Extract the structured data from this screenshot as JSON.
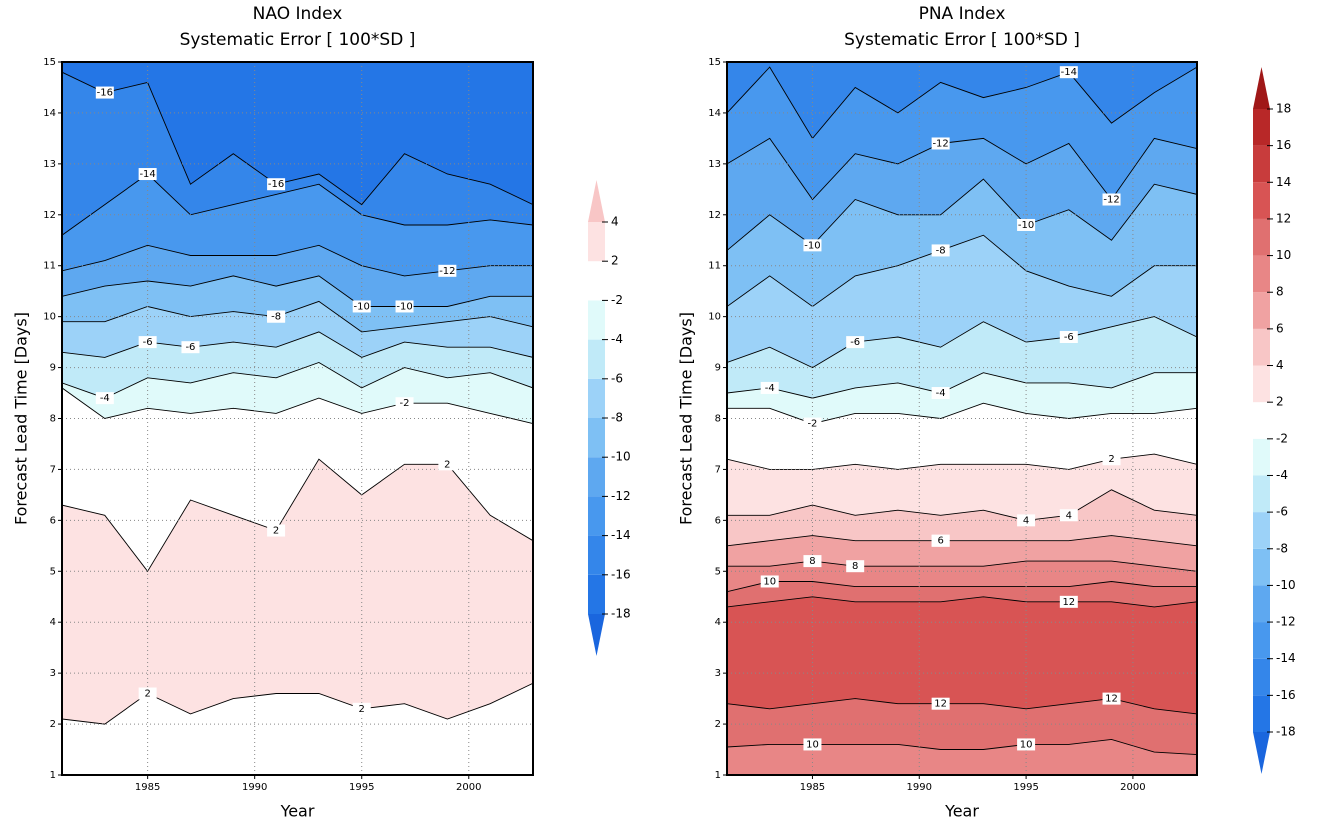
{
  "chart_data": [
    {
      "type": "contour",
      "title": "NAO Index",
      "subtitle": "Systematic Error [ 100*SD ]",
      "xlabel": "Year",
      "ylabel": "Forecast Lead Time  [Days]",
      "xlim": [
        1981,
        2003
      ],
      "xticks": [
        1985,
        1990,
        1995,
        2000
      ],
      "ylim": [
        1,
        15
      ],
      "yticks": [
        1,
        2,
        3,
        4,
        5,
        6,
        7,
        8,
        9,
        10,
        11,
        12,
        13,
        14,
        15
      ],
      "grid": true,
      "base_color": "#ffffff",
      "x": [
        1981,
        1983,
        1985,
        1987,
        1989,
        1991,
        1993,
        1995,
        1997,
        1999,
        2001,
        2003
      ],
      "series": [
        {
          "level": 2,
          "color": "#fde2e2",
          "values": [
            2.1,
            2.0,
            2.6,
            2.2,
            2.5,
            2.6,
            2.6,
            2.3,
            2.4,
            2.1,
            2.4,
            2.8
          ]
        },
        {
          "level": 2,
          "color": "#ffffff",
          "values": [
            6.3,
            6.1,
            5.0,
            6.4,
            6.1,
            5.8,
            7.2,
            6.5,
            7.1,
            7.1,
            6.1,
            5.6
          ]
        },
        {
          "level": -2,
          "color": "#e0fafa",
          "values": [
            8.6,
            8.0,
            8.2,
            8.1,
            8.2,
            8.1,
            8.4,
            8.1,
            8.3,
            8.3,
            8.1,
            7.9
          ]
        },
        {
          "level": -4,
          "color": "#c0eaf8",
          "values": [
            8.7,
            8.4,
            8.8,
            8.7,
            8.9,
            8.8,
            9.1,
            8.6,
            9.0,
            8.8,
            8.9,
            8.6
          ]
        },
        {
          "level": -6,
          "color": "#9cd2f8",
          "values": [
            9.3,
            9.2,
            9.5,
            9.4,
            9.5,
            9.4,
            9.7,
            9.2,
            9.5,
            9.4,
            9.4,
            9.2
          ]
        },
        {
          "level": -8,
          "color": "#7ec0f4",
          "values": [
            9.9,
            9.9,
            10.2,
            10.0,
            10.1,
            10.0,
            10.3,
            9.7,
            9.8,
            9.9,
            10.0,
            9.8
          ]
        },
        {
          "level": -10,
          "color": "#5ea8f0",
          "values": [
            10.4,
            10.6,
            10.7,
            10.6,
            10.8,
            10.6,
            10.8,
            10.2,
            10.2,
            10.2,
            10.4,
            10.4
          ]
        },
        {
          "level": -12,
          "color": "#4898ee",
          "values": [
            10.9,
            11.1,
            11.4,
            11.2,
            11.2,
            11.2,
            11.4,
            11.0,
            10.8,
            10.9,
            11.0,
            11.0
          ]
        },
        {
          "level": -14,
          "color": "#3486ea",
          "values": [
            11.6,
            12.2,
            12.8,
            12.0,
            12.2,
            12.4,
            12.6,
            12.0,
            11.8,
            11.8,
            11.9,
            11.8
          ]
        },
        {
          "level": -16,
          "color": "#2476e6",
          "values": [
            14.8,
            14.4,
            14.6,
            12.6,
            13.2,
            12.6,
            12.8,
            12.2,
            13.2,
            12.8,
            12.6,
            12.2
          ]
        }
      ],
      "colorbar": {
        "levels": [
          -18,
          -16,
          -14,
          -12,
          -10,
          -8,
          -6,
          -4,
          -2,
          2,
          4
        ],
        "colors": [
          "#1a66de",
          "#2476e6",
          "#3486ea",
          "#4898ee",
          "#5ea8f0",
          "#7ec0f4",
          "#9cd2f8",
          "#c0eaf8",
          "#e0fafa",
          "#ffffff",
          "#fde2e2",
          "#f8c6c6"
        ]
      }
    },
    {
      "type": "contour",
      "title": "PNA Index",
      "subtitle": "Systematic Error [ 100*SD ]",
      "xlabel": "Year",
      "ylabel": "Forecast Lead Time  [Days]",
      "xlim": [
        1981,
        2003
      ],
      "xticks": [
        1985,
        1990,
        1995,
        2000
      ],
      "ylim": [
        1,
        15
      ],
      "yticks": [
        1,
        2,
        3,
        4,
        5,
        6,
        7,
        8,
        9,
        10,
        11,
        12,
        13,
        14,
        15
      ],
      "grid": true,
      "base_color": "#e88686",
      "x": [
        1981,
        1983,
        1985,
        1987,
        1989,
        1991,
        1993,
        1995,
        1997,
        1999,
        2001,
        2003
      ],
      "series": [
        {
          "level": 10,
          "color": "#e07070",
          "values": [
            1.55,
            1.6,
            1.6,
            1.6,
            1.6,
            1.5,
            1.5,
            1.6,
            1.6,
            1.7,
            1.45,
            1.4
          ]
        },
        {
          "level": 12,
          "color": "#d85454",
          "values": [
            2.4,
            2.3,
            2.4,
            2.5,
            2.4,
            2.4,
            2.4,
            2.3,
            2.4,
            2.5,
            2.3,
            2.2
          ]
        },
        {
          "level": 12,
          "color": "#e07070",
          "values": [
            4.3,
            4.4,
            4.5,
            4.4,
            4.4,
            4.4,
            4.5,
            4.4,
            4.4,
            4.4,
            4.3,
            4.4
          ]
        },
        {
          "level": 10,
          "color": "#e88686",
          "values": [
            4.6,
            4.8,
            4.8,
            4.7,
            4.7,
            4.7,
            4.7,
            4.7,
            4.7,
            4.8,
            4.7,
            4.7
          ]
        },
        {
          "level": 8,
          "color": "#f0a2a2",
          "values": [
            5.1,
            5.1,
            5.2,
            5.1,
            5.1,
            5.1,
            5.1,
            5.2,
            5.2,
            5.2,
            5.1,
            5.0
          ]
        },
        {
          "level": 6,
          "color": "#f8c6c6",
          "values": [
            5.5,
            5.6,
            5.7,
            5.6,
            5.6,
            5.6,
            5.6,
            5.6,
            5.6,
            5.7,
            5.6,
            5.5
          ]
        },
        {
          "level": 4,
          "color": "#fde2e2",
          "values": [
            6.1,
            6.1,
            6.3,
            6.1,
            6.2,
            6.1,
            6.2,
            6.0,
            6.1,
            6.6,
            6.2,
            6.1
          ]
        },
        {
          "level": 2,
          "color": "#ffffff",
          "values": [
            7.2,
            7.0,
            7.0,
            7.1,
            7.0,
            7.1,
            7.1,
            7.1,
            7.0,
            7.2,
            7.3,
            7.1
          ]
        },
        {
          "level": -2,
          "color": "#e0fafa",
          "values": [
            8.2,
            8.2,
            7.9,
            8.1,
            8.1,
            8.0,
            8.3,
            8.1,
            8.0,
            8.1,
            8.1,
            8.2
          ]
        },
        {
          "level": -4,
          "color": "#c0eaf8",
          "values": [
            8.5,
            8.6,
            8.4,
            8.6,
            8.7,
            8.5,
            8.9,
            8.7,
            8.7,
            8.6,
            8.9,
            8.9
          ]
        },
        {
          "level": -6,
          "color": "#9cd2f8",
          "values": [
            9.1,
            9.4,
            9.0,
            9.5,
            9.6,
            9.4,
            9.9,
            9.5,
            9.6,
            9.8,
            10.0,
            9.6
          ]
        },
        {
          "level": -8,
          "color": "#7ec0f4",
          "values": [
            10.2,
            10.8,
            10.2,
            10.8,
            11.0,
            11.3,
            11.6,
            10.9,
            10.6,
            10.4,
            11.0,
            11.0
          ]
        },
        {
          "level": -10,
          "color": "#5ea8f0",
          "values": [
            11.3,
            12.0,
            11.4,
            12.3,
            12.0,
            12.0,
            12.7,
            11.8,
            12.1,
            11.5,
            12.6,
            12.4
          ]
        },
        {
          "level": -12,
          "color": "#4898ee",
          "values": [
            13.0,
            13.5,
            12.3,
            13.2,
            13.0,
            13.4,
            13.5,
            13.0,
            13.4,
            12.3,
            13.5,
            13.3
          ]
        },
        {
          "level": -14,
          "color": "#3486ea",
          "values": [
            14.0,
            14.9,
            13.5,
            14.5,
            14.0,
            14.6,
            14.3,
            14.5,
            14.8,
            13.8,
            14.4,
            14.9
          ]
        }
      ],
      "colorbar": {
        "levels": [
          -18,
          -16,
          -14,
          -12,
          -10,
          -8,
          -6,
          -4,
          -2,
          2,
          4,
          6,
          8,
          10,
          12,
          14,
          16,
          18
        ],
        "colors": [
          "#1a66de",
          "#2476e6",
          "#3486ea",
          "#4898ee",
          "#5ea8f0",
          "#7ec0f4",
          "#9cd2f8",
          "#c0eaf8",
          "#e0fafa",
          "#ffffff",
          "#fde2e2",
          "#f8c6c6",
          "#f0a2a2",
          "#e88686",
          "#e07070",
          "#d85454",
          "#c83c3c",
          "#b82828",
          "#a01818"
        ]
      }
    }
  ]
}
